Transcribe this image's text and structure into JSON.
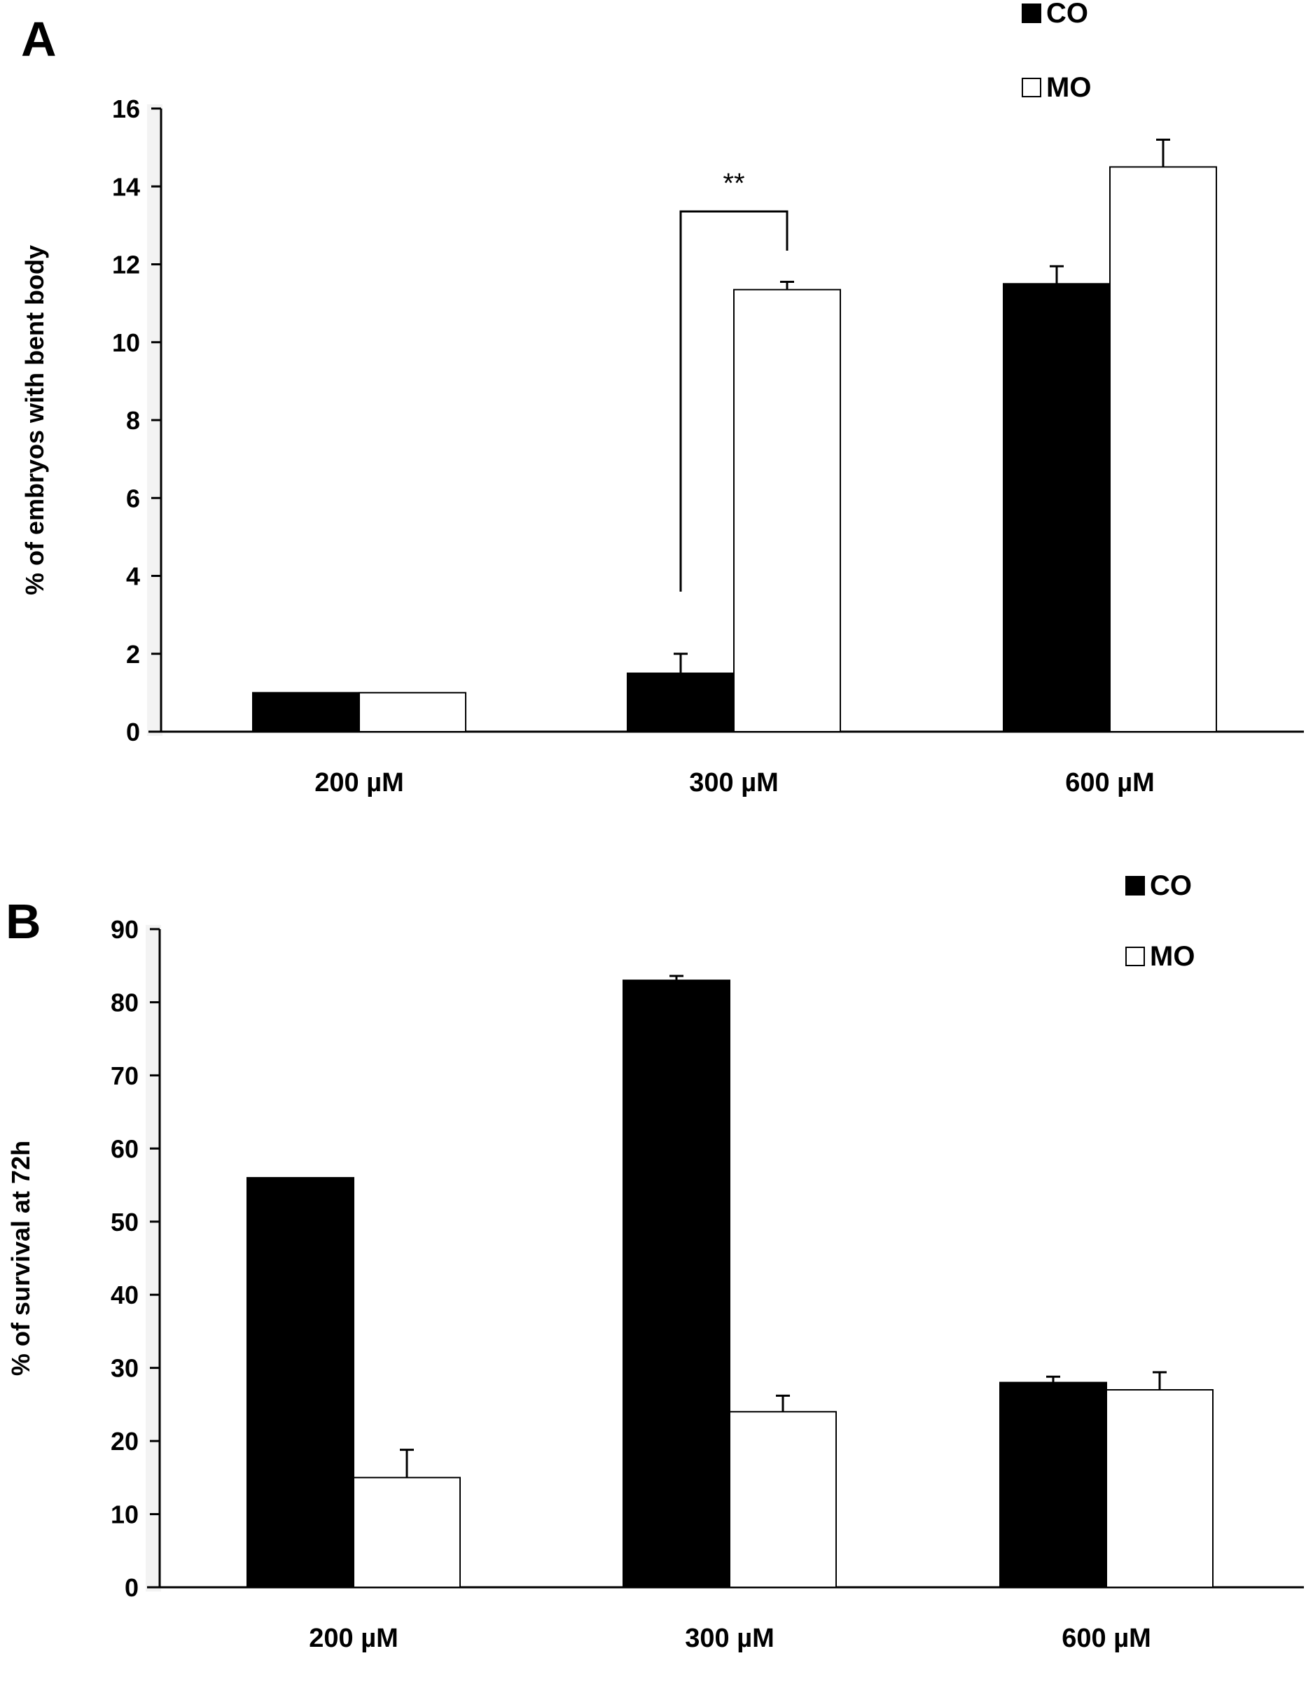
{
  "chart_data": [
    {
      "panel": "A",
      "type": "bar",
      "title": "",
      "xlabel": "",
      "ylabel": "% of embryos with bent body",
      "categories": [
        "200 µM",
        "300 µM",
        "600 µM"
      ],
      "ylim": [
        0,
        16
      ],
      "yticks": [
        0,
        2,
        4,
        6,
        8,
        10,
        12,
        14,
        16
      ],
      "grid": false,
      "legend_position": "top-right",
      "series": [
        {
          "name": "CO",
          "color": "#000000",
          "values": [
            1.0,
            1.5,
            11.5
          ],
          "errors": [
            0,
            0.5,
            0.45
          ]
        },
        {
          "name": "MO",
          "color": "#ffffff",
          "values": [
            1.0,
            11.35,
            14.5
          ],
          "errors": [
            0,
            0.2,
            0.7
          ]
        }
      ],
      "annotations": [
        {
          "text": "**",
          "category_index": 1
        }
      ]
    },
    {
      "panel": "B",
      "type": "bar",
      "title": "",
      "xlabel": "",
      "ylabel": "% of survival at 72h",
      "categories": [
        "200 µM",
        "300 µM",
        "600 µM"
      ],
      "ylim": [
        0,
        90
      ],
      "yticks": [
        0,
        10,
        20,
        30,
        40,
        50,
        60,
        70,
        80,
        90
      ],
      "grid": false,
      "legend_position": "top-right",
      "series": [
        {
          "name": "CO",
          "color": "#000000",
          "values": [
            56,
            83,
            28
          ],
          "errors": [
            0,
            0.6,
            0.8
          ]
        },
        {
          "name": "MO",
          "color": "#ffffff",
          "values": [
            15,
            24,
            27
          ],
          "errors": [
            3.8,
            2.2,
            2.4
          ]
        }
      ],
      "annotations": []
    }
  ]
}
